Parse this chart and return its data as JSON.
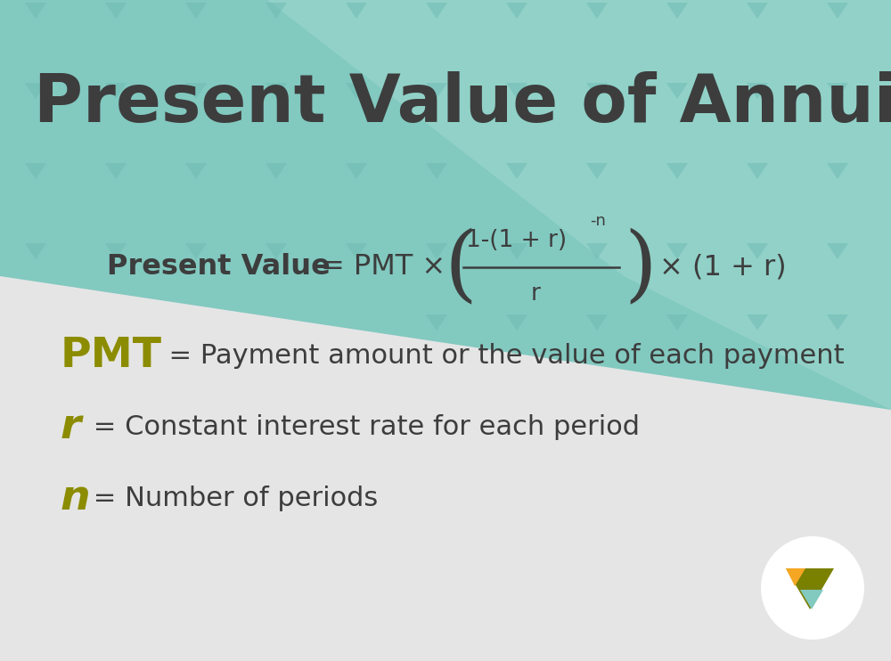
{
  "title": "Present Value of Annuity Due",
  "title_color": "#3d3d3d",
  "title_fontsize": 54,
  "bg_teal": "#82c9c0",
  "bg_light": "#e5e5e5",
  "dark_text": "#3d3d3d",
  "olive_color": "#8c8c00",
  "orange_color": "#f5a623",
  "teal_logo": "#82c9c0",
  "pmt_label": "PMT",
  "pmt_desc": "  = Payment amount or the value of each payment",
  "r_label": "r",
  "r_desc": " = Constant interest rate for each period",
  "n_label": "n",
  "n_desc": " = Number of periods",
  "figsize": [
    10.0,
    7.42
  ],
  "dpi": 100,
  "teal_pattern_color": "#6ab8b0",
  "teal_pattern_alpha": 0.45
}
